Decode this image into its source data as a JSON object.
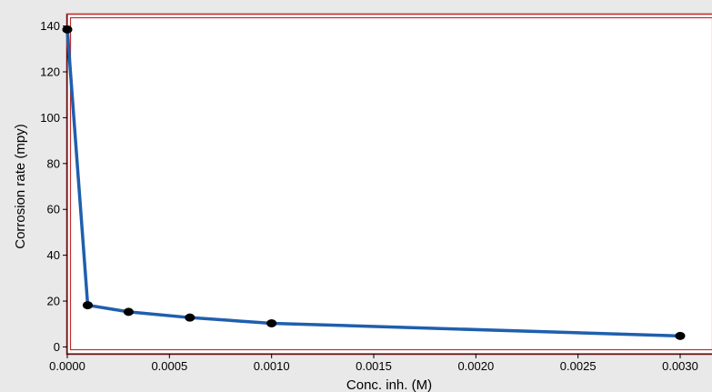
{
  "chart_data": {
    "type": "line",
    "title": "",
    "xlabel": "Conc. inh. (M)",
    "ylabel": "Corrosion rate (mpy)",
    "xlim": [
      0,
      0.003
    ],
    "ylim": [
      -3,
      145
    ],
    "x_ticks": [
      "0.0000",
      "0.0005",
      "0.0010",
      "0.0015",
      "0.0020",
      "0.0025",
      "0.0030"
    ],
    "y_ticks": [
      "0",
      "20",
      "40",
      "60",
      "80",
      "100",
      "120",
      "140"
    ],
    "grid": false,
    "series": [
      {
        "color": "#1f5fad",
        "marker_color": "#000000",
        "x": [
          0.0,
          0.0001,
          0.0003,
          0.0006,
          0.001,
          0.003
        ],
        "y": [
          138.5,
          18.2,
          15.3,
          12.8,
          10.3,
          4.8
        ]
      }
    ]
  }
}
